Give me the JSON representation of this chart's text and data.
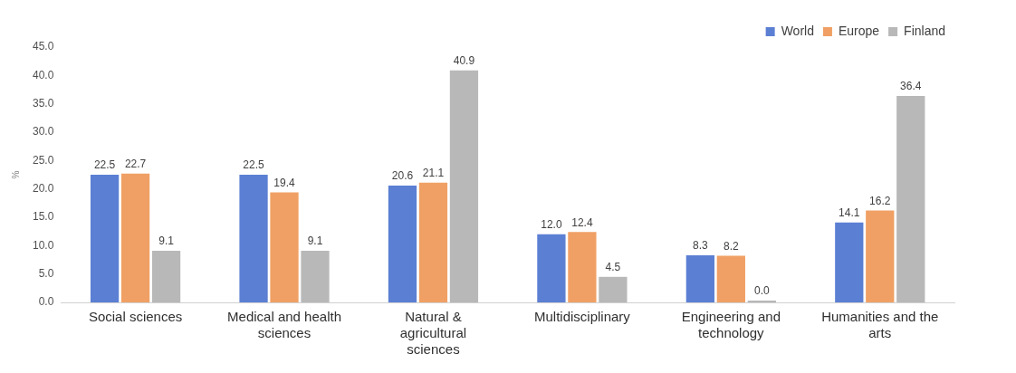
{
  "chart_data": {
    "type": "bar",
    "ylabel": "%",
    "categories": [
      "Social sciences",
      "Medical and health sciences",
      "Natural & agricultural sciences",
      "Multidisciplinary",
      "Engineering and technology",
      "Humanities and the arts"
    ],
    "series": [
      {
        "name": "World",
        "color": "#5b7fd3",
        "values": [
          22.5,
          22.5,
          20.6,
          12.0,
          8.3,
          14.1
        ],
        "value_labels": [
          "22.5",
          "22.5",
          "20.6",
          "12.0",
          "8.3",
          "14.1"
        ]
      },
      {
        "name": "Europe",
        "color": "#f0a064",
        "values": [
          22.7,
          19.4,
          21.1,
          12.4,
          8.2,
          16.2
        ],
        "value_labels": [
          "22.7",
          "19.4",
          "21.1",
          "12.4",
          "8.2",
          "16.2"
        ]
      },
      {
        "name": "Finland",
        "color": "#b8b8b8",
        "values": [
          9.1,
          9.1,
          40.9,
          4.5,
          0.0,
          36.4
        ],
        "value_labels": [
          "9.1",
          "9.1",
          "40.9",
          "4.5",
          "0.0",
          "36.4"
        ]
      }
    ],
    "ylim": [
      0,
      45
    ],
    "yticks": [
      {
        "value": 0,
        "label": "0.0"
      },
      {
        "value": 5,
        "label": "5.0"
      },
      {
        "value": 10,
        "label": "10.0"
      },
      {
        "value": 15,
        "label": "15.0"
      },
      {
        "value": 20,
        "label": "20.0"
      },
      {
        "value": 25,
        "label": "25.0"
      },
      {
        "value": 30,
        "label": "30.0"
      },
      {
        "value": 35,
        "label": "35.0"
      },
      {
        "value": 40,
        "label": "40.0"
      },
      {
        "value": 45,
        "label": "45.0"
      }
    ],
    "grid": false,
    "legend": "top right"
  }
}
